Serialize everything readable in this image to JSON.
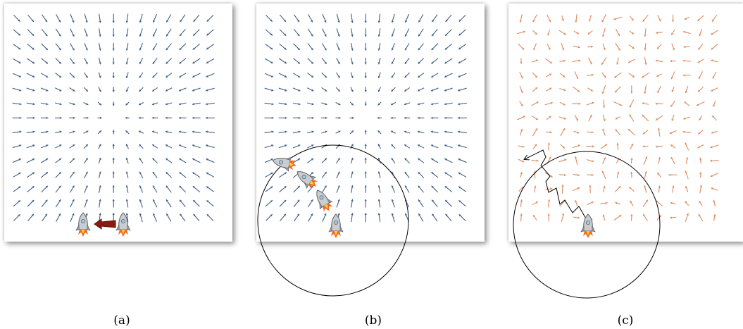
{
  "captions": {
    "a": "(a)",
    "b": "(b)",
    "c": "(c)"
  },
  "colors": {
    "field": "#3d5f87",
    "noisy_field": "#dd8a5e",
    "arrow_big": "#8b1a0f",
    "trajectory": "#000000"
  },
  "panels": [
    {
      "id": "a",
      "field": "smooth",
      "rocket_icons": 2,
      "trust_region_circle": false,
      "path": "none"
    },
    {
      "id": "b",
      "field": "smooth",
      "rocket_icons": 4,
      "trust_region_circle": true,
      "path": "smooth-descent"
    },
    {
      "id": "c",
      "field": "noisy",
      "rocket_icons": 1,
      "trust_region_circle": true,
      "path": "zigzag"
    }
  ],
  "icons": {
    "rocket": "rocket-icon",
    "move_arrow": "left-arrow-icon"
  }
}
